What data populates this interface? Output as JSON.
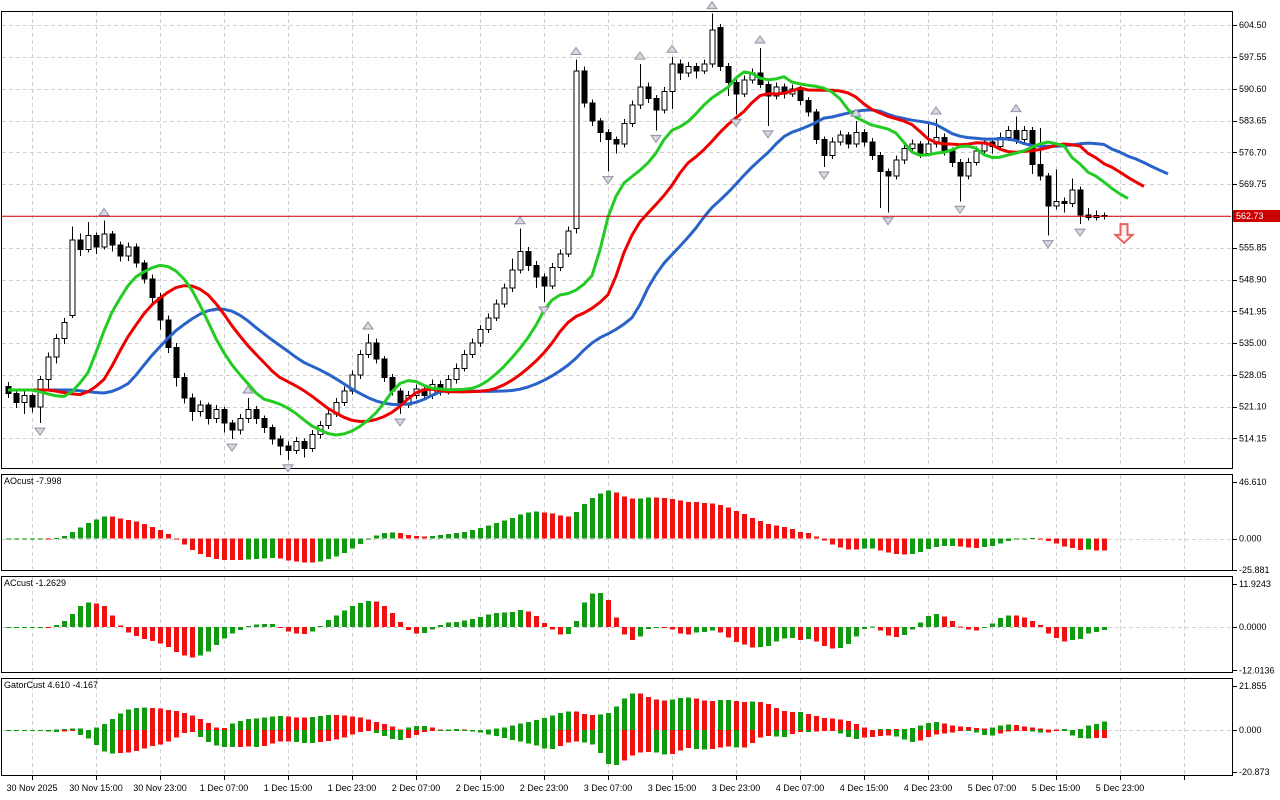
{
  "colors": {
    "background": "#FFFFFF",
    "frame": "#000000",
    "grid": "#D0D0D0",
    "candle_outline": "#000000",
    "bull_body": "#FFFFFF",
    "bear_body": "#000000",
    "alligator_jaw_blue": "#2963C9",
    "alligator_teeth_red": "#EE0000",
    "alligator_lips_green": "#22CC22",
    "histogram_up_green": "#119911",
    "histogram_down_red": "#EE1111",
    "price_line": "#CC0000",
    "price_label_bg": "#CC0000",
    "price_label_text": "#FFFFFF",
    "fractal_fill": "#D6D8E0",
    "fractal_edge": "#8E93A3",
    "signal_arrow_stroke": "#E96060",
    "signal_arrow_fill": "#FFF2F2"
  },
  "chart_data": {
    "type": "candlestick_ohlc_with_indicators",
    "timeframe": "H1",
    "current_price": "562.73",
    "price_axis": {
      "top_value": 607.6,
      "bottom_value": 507.7,
      "gridline_start": 514.15,
      "gridline_step": 6.95,
      "gridline_count": 14,
      "labels": [
        "604.50",
        "597.55",
        "590.60",
        "583.65",
        "576.70",
        "569.75",
        "555.85",
        "548.90",
        "541.95",
        "535.00",
        "528.05",
        "521.10",
        "514.15"
      ]
    },
    "time_axis": {
      "labels": [
        "30 Nov 2025",
        "30 Nov 15:00",
        "30 Nov 23:00",
        "1 Dec 07:00",
        "1 Dec 15:00",
        "1 Dec 23:00",
        "2 Dec 07:00",
        "2 Dec 15:00",
        "2 Dec 23:00",
        "3 Dec 07:00",
        "3 Dec 15:00",
        "3 Dec 23:00",
        "4 Dec 07:00",
        "4 Dec 15:00",
        "4 Dec 23:00",
        "5 Dec 07:00",
        "5 Dec 15:00",
        "5 Dec 23:00"
      ],
      "first_label_bar_index": 3,
      "bars_per_gridline": 8
    },
    "candles": [
      [
        525.5,
        526.5,
        523,
        524
      ],
      [
        524,
        524.8,
        520.8,
        522
      ],
      [
        522,
        524.5,
        519.5,
        523.5
      ],
      [
        523.5,
        524,
        519.8,
        521
      ],
      [
        521,
        527.8,
        517.5,
        527
      ],
      [
        527,
        533,
        524.5,
        532
      ],
      [
        532,
        537,
        530.5,
        536
      ],
      [
        536,
        540.5,
        534.8,
        539.5
      ],
      [
        541,
        560.5,
        540.5,
        557.5
      ],
      [
        557.5,
        559,
        554,
        555.5
      ],
      [
        555.5,
        561.5,
        554.8,
        558.5
      ],
      [
        558.5,
        559.2,
        554.5,
        556
      ],
      [
        556,
        561.8,
        555.5,
        558.8
      ],
      [
        558.8,
        559.5,
        555,
        556.5
      ],
      [
        556.5,
        557.2,
        552.8,
        554
      ],
      [
        554,
        557,
        553,
        556
      ],
      [
        556,
        556.8,
        551.5,
        552.5
      ],
      [
        552.5,
        553.2,
        548,
        549
      ],
      [
        549,
        550,
        543.8,
        545
      ],
      [
        545,
        546,
        538,
        540
      ],
      [
        540,
        541,
        532.8,
        534
      ],
      [
        534,
        535,
        525.5,
        527.5
      ],
      [
        527.5,
        528.5,
        521.8,
        523
      ],
      [
        523,
        524,
        518,
        520
      ],
      [
        520,
        522.5,
        519,
        521.5
      ],
      [
        521.5,
        522,
        517.2,
        518.5
      ],
      [
        518.5,
        521.5,
        517.5,
        520.5
      ],
      [
        520.5,
        521,
        515.5,
        517.5
      ],
      [
        517.5,
        518.2,
        514,
        516
      ],
      [
        516,
        519.5,
        515,
        518.5
      ],
      [
        518.5,
        523,
        517.5,
        520.5
      ],
      [
        520.5,
        521.2,
        517.3,
        518.5
      ],
      [
        518.5,
        519.2,
        515.3,
        516.5
      ],
      [
        516.5,
        517.2,
        512.8,
        514
      ],
      [
        514,
        514.8,
        510.5,
        512.5
      ],
      [
        512.5,
        513.5,
        509.5,
        511.5
      ],
      [
        511.5,
        514.5,
        510.8,
        513.5
      ],
      [
        513.5,
        514.2,
        510,
        512
      ],
      [
        512,
        516,
        511.2,
        515
      ],
      [
        515,
        518,
        514.2,
        517
      ],
      [
        517,
        520.5,
        516.2,
        519.5
      ],
      [
        519.5,
        523,
        518.8,
        522
      ],
      [
        522,
        525.5,
        521.2,
        524.5
      ],
      [
        524.5,
        529,
        523.8,
        528
      ],
      [
        528,
        533.5,
        527.2,
        532.5
      ],
      [
        532.5,
        537,
        531.8,
        535
      ],
      [
        535,
        536,
        530.5,
        531.5
      ],
      [
        531.5,
        532.2,
        526.5,
        527.5
      ],
      [
        527.5,
        528.2,
        523.5,
        524.5
      ],
      [
        524.5,
        525.2,
        519.5,
        521.5
      ],
      [
        521.5,
        524.5,
        520.8,
        523.5
      ],
      [
        523.5,
        526,
        522.8,
        525
      ],
      [
        525,
        525.8,
        522.5,
        523.5
      ],
      [
        523.5,
        527,
        522.8,
        526
      ],
      [
        526,
        526.8,
        523.5,
        524.5
      ],
      [
        524.5,
        528,
        523.8,
        527
      ],
      [
        527,
        530.5,
        526.2,
        529.5
      ],
      [
        529.5,
        533.5,
        528.8,
        532.5
      ],
      [
        532.5,
        536,
        531.8,
        535
      ],
      [
        535,
        539,
        534.2,
        538
      ],
      [
        538,
        541.5,
        537.2,
        540.5
      ],
      [
        540.5,
        544.5,
        539.8,
        543.5
      ],
      [
        543.5,
        548,
        542.8,
        547
      ],
      [
        547,
        553.5,
        546.2,
        551
      ],
      [
        551,
        560,
        550.2,
        555
      ],
      [
        555,
        556,
        550.8,
        552
      ],
      [
        552,
        553,
        547,
        549.5
      ],
      [
        549.5,
        550.2,
        544,
        547.5
      ],
      [
        547.5,
        552.5,
        546.8,
        551.5
      ],
      [
        551.5,
        555.5,
        550.8,
        554.5
      ],
      [
        554.5,
        560.5,
        553.8,
        559.5
      ],
      [
        560,
        597,
        559,
        594.5
      ],
      [
        594.5,
        595.5,
        586.5,
        587.5
      ],
      [
        587.5,
        588.2,
        582.5,
        583.5
      ],
      [
        583.5,
        584.2,
        579,
        581
      ],
      [
        581,
        581.8,
        572.5,
        579.5
      ],
      [
        579.5,
        580.2,
        576.5,
        578.5
      ],
      [
        578.5,
        584,
        577.8,
        583
      ],
      [
        583,
        588,
        582.2,
        587
      ],
      [
        587,
        596,
        586.2,
        591
      ],
      [
        591,
        592,
        587.5,
        588.5
      ],
      [
        588.5,
        589.2,
        581.5,
        586
      ],
      [
        586,
        591,
        585.2,
        590
      ],
      [
        590,
        597.5,
        586.2,
        596
      ],
      [
        596,
        597,
        592.5,
        594
      ],
      [
        594,
        596.5,
        593.2,
        595.5
      ],
      [
        595.5,
        596.2,
        592.8,
        594.5
      ],
      [
        594.5,
        597,
        593.8,
        596
      ],
      [
        596,
        607,
        595.2,
        603.5
      ],
      [
        604,
        604.8,
        594.5,
        595.5
      ],
      [
        595.5,
        596.2,
        589,
        592
      ],
      [
        592,
        592.8,
        585,
        589.5
      ],
      [
        589.5,
        593.5,
        588.8,
        592.5
      ],
      [
        592.5,
        595,
        591.8,
        594
      ],
      [
        594,
        599.5,
        590.8,
        591.5
      ],
      [
        591.5,
        592.2,
        582.5,
        589
      ],
      [
        589,
        592,
        588.2,
        591
      ],
      [
        591,
        591.8,
        588.5,
        589.5
      ],
      [
        589.5,
        591.5,
        588.8,
        590.5
      ],
      [
        590.5,
        591.2,
        587,
        588
      ],
      [
        588,
        588.8,
        584.5,
        585.5
      ],
      [
        585.5,
        586.2,
        578.5,
        579.5
      ],
      [
        579.5,
        580.2,
        573.5,
        576
      ],
      [
        576,
        580,
        575.2,
        579
      ],
      [
        579,
        581.5,
        578.2,
        580.5
      ],
      [
        580.5,
        581.2,
        577.5,
        578.5
      ],
      [
        578.5,
        583.5,
        577.8,
        581
      ],
      [
        581,
        581.8,
        578,
        579
      ],
      [
        579,
        579.8,
        575,
        576
      ],
      [
        576,
        576.8,
        564.5,
        572.5
      ],
      [
        572.5,
        573.2,
        563.5,
        571.5
      ],
      [
        571.5,
        576,
        570.8,
        575
      ],
      [
        575,
        578.5,
        574.2,
        577.5
      ],
      [
        577.5,
        579.5,
        576.8,
        578.5
      ],
      [
        578.5,
        579.2,
        575.5,
        576.5
      ],
      [
        576.5,
        583,
        575.8,
        578.5
      ],
      [
        578.5,
        584,
        577.8,
        580
      ],
      [
        580,
        580.8,
        576,
        577
      ],
      [
        577,
        577.8,
        573.5,
        574.5
      ],
      [
        574.5,
        575.2,
        566,
        571.5
      ],
      [
        571.5,
        575.5,
        570.8,
        574.5
      ],
      [
        574.5,
        578,
        573.8,
        577
      ],
      [
        577,
        580,
        576.2,
        579
      ],
      [
        579,
        579.8,
        576.5,
        578
      ],
      [
        578,
        581,
        577.2,
        580
      ],
      [
        580,
        582.5,
        579.2,
        581.5
      ],
      [
        581.5,
        584.5,
        578.5,
        579.5
      ],
      [
        579.5,
        582.5,
        578.8,
        581.5
      ],
      [
        581.5,
        582.2,
        572,
        574
      ],
      [
        574,
        582,
        570.5,
        571.5
      ],
      [
        571.5,
        572.2,
        558.5,
        565
      ],
      [
        565,
        573,
        564.2,
        566
      ],
      [
        566,
        566.8,
        563.5,
        565.5
      ],
      [
        565.5,
        571,
        564.8,
        568.5
      ],
      [
        568.5,
        569.2,
        561,
        563
      ],
      [
        563,
        564.5,
        561.8,
        562.5
      ],
      [
        562.5,
        564,
        561.8,
        562.9
      ],
      [
        562.9,
        563.5,
        562,
        562.73
      ]
    ],
    "indicators": {
      "alligator": {
        "jaw_period": 13,
        "jaw_shift": 8,
        "teeth_period": 8,
        "teeth_shift": 5,
        "lips_period": 5,
        "lips_shift": 3
      },
      "panes": [
        {
          "id": "ao",
          "label": "AOcust -7.998",
          "last_value": -7.998,
          "scale_labels": [
            "46.610",
            "0.000",
            "-25.881"
          ],
          "vmax": 53.3,
          "vmin": -26.0
        },
        {
          "id": "ac",
          "label": "ACcust -1.2629",
          "last_value": -1.2629,
          "scale_labels": [
            "11.9243",
            "0.0000",
            "-12.0136"
          ],
          "vmax": 14.2,
          "vmin": -12.5
        },
        {
          "id": "gator",
          "label": "GatorCust 4.610 -4.167",
          "last_values": [
            4.61,
            -4.167
          ],
          "scale_labels": [
            "21.855",
            "0.000",
            "-20.873"
          ],
          "vmax": 25.9,
          "vmin": -22.4
        }
      ]
    },
    "signal_arrow": {
      "direction": "down",
      "bar": 139.5,
      "price_start": 561.0,
      "price_end": 556.9
    }
  }
}
